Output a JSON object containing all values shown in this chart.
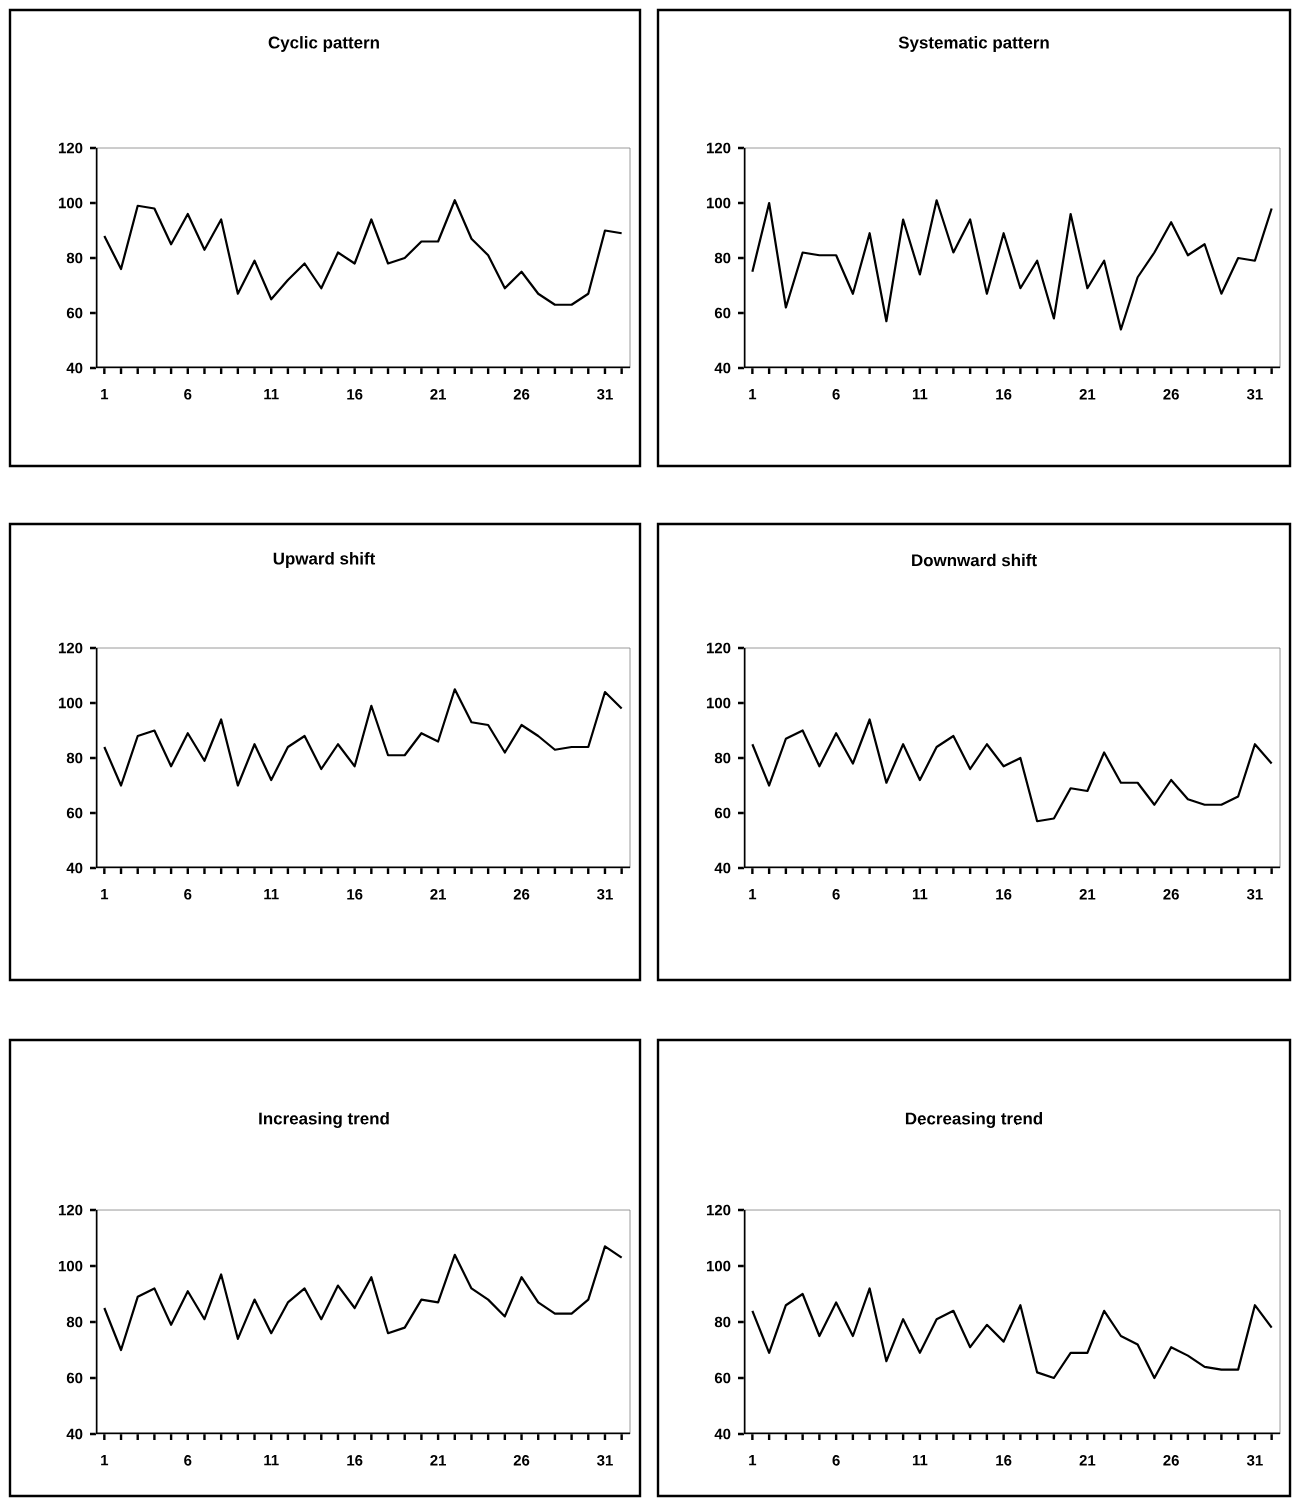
{
  "chart_data": [
    {
      "type": "line",
      "title": "Cyclic pattern",
      "x": [
        1,
        2,
        3,
        4,
        5,
        6,
        7,
        8,
        9,
        10,
        11,
        12,
        13,
        14,
        15,
        16,
        17,
        18,
        19,
        20,
        21,
        22,
        23,
        24,
        25,
        26,
        27,
        28,
        29,
        30,
        31,
        32
      ],
      "xlim": [
        0.5,
        32.5
      ],
      "xticks": [
        1,
        {
          "value": 2,
          "label": null
        },
        {
          "value": 3,
          "label": null
        },
        {
          "value": 4,
          "label": null
        },
        {
          "value": 5,
          "label": null
        },
        6,
        {
          "value": 7,
          "label": null
        },
        {
          "value": 8,
          "label": null
        },
        {
          "value": 9,
          "label": null
        },
        {
          "value": 10,
          "label": null
        },
        11,
        {
          "value": 12,
          "label": null
        },
        {
          "value": 13,
          "label": null
        },
        {
          "value": 14,
          "label": null
        },
        {
          "value": 15,
          "label": null
        },
        16,
        {
          "value": 17,
          "label": null
        },
        {
          "value": 18,
          "label": null
        },
        {
          "value": 19,
          "label": null
        },
        {
          "value": 20,
          "label": null
        },
        21,
        {
          "value": 22,
          "label": null
        },
        {
          "value": 23,
          "label": null
        },
        {
          "value": 24,
          "label": null
        },
        {
          "value": 25,
          "label": null
        },
        26,
        {
          "value": 27,
          "label": null
        },
        {
          "value": 28,
          "label": null
        },
        {
          "value": 29,
          "label": null
        },
        {
          "value": 30,
          "label": null
        },
        31,
        {
          "value": 32,
          "label": null
        }
      ],
      "ylim": [
        40,
        120
      ],
      "yticks": [
        40,
        60,
        80,
        100,
        120
      ],
      "series": [
        {
          "color": "#000000",
          "values": [
            88,
            76,
            99,
            98,
            85,
            96,
            83,
            94,
            67,
            79,
            65,
            72,
            78,
            69,
            82,
            78,
            94,
            78,
            80,
            86,
            86,
            101,
            87,
            81,
            69,
            75,
            67,
            63,
            63,
            67,
            90,
            89
          ]
        }
      ]
    },
    {
      "type": "line",
      "title": "Systematic pattern",
      "x": [
        1,
        2,
        3,
        4,
        5,
        6,
        7,
        8,
        9,
        10,
        11,
        12,
        13,
        14,
        15,
        16,
        17,
        18,
        19,
        20,
        21,
        22,
        23,
        24,
        25,
        26,
        27,
        28,
        29,
        30,
        31,
        32
      ],
      "xlim": [
        0.5,
        32.5
      ],
      "xticks": [
        1,
        {
          "value": 2,
          "label": null
        },
        {
          "value": 3,
          "label": null
        },
        {
          "value": 4,
          "label": null
        },
        {
          "value": 5,
          "label": null
        },
        6,
        {
          "value": 7,
          "label": null
        },
        {
          "value": 8,
          "label": null
        },
        {
          "value": 9,
          "label": null
        },
        {
          "value": 10,
          "label": null
        },
        11,
        {
          "value": 12,
          "label": null
        },
        {
          "value": 13,
          "label": null
        },
        {
          "value": 14,
          "label": null
        },
        {
          "value": 15,
          "label": null
        },
        16,
        {
          "value": 17,
          "label": null
        },
        {
          "value": 18,
          "label": null
        },
        {
          "value": 19,
          "label": null
        },
        {
          "value": 20,
          "label": null
        },
        21,
        {
          "value": 22,
          "label": null
        },
        {
          "value": 23,
          "label": null
        },
        {
          "value": 24,
          "label": null
        },
        {
          "value": 25,
          "label": null
        },
        26,
        {
          "value": 27,
          "label": null
        },
        {
          "value": 28,
          "label": null
        },
        {
          "value": 29,
          "label": null
        },
        {
          "value": 30,
          "label": null
        },
        31,
        {
          "value": 32,
          "label": null
        }
      ],
      "ylim": [
        40,
        120
      ],
      "yticks": [
        40,
        60,
        80,
        100,
        120
      ],
      "series": [
        {
          "color": "#000000",
          "values": [
            75,
            100,
            62,
            82,
            81,
            81,
            67,
            89,
            57,
            94,
            74,
            101,
            82,
            94,
            67,
            89,
            69,
            79,
            58,
            96,
            69,
            79,
            54,
            73,
            82,
            93,
            81,
            85,
            67,
            80,
            79,
            98
          ]
        }
      ]
    },
    {
      "type": "line",
      "title": "Upward shift",
      "x": [
        1,
        2,
        3,
        4,
        5,
        6,
        7,
        8,
        9,
        10,
        11,
        12,
        13,
        14,
        15,
        16,
        17,
        18,
        19,
        20,
        21,
        22,
        23,
        24,
        25,
        26,
        27,
        28,
        29,
        30,
        31,
        32
      ],
      "xlim": [
        0.5,
        32.5
      ],
      "xticks": [
        1,
        {
          "value": 2,
          "label": null
        },
        {
          "value": 3,
          "label": null
        },
        {
          "value": 4,
          "label": null
        },
        {
          "value": 5,
          "label": null
        },
        6,
        {
          "value": 7,
          "label": null
        },
        {
          "value": 8,
          "label": null
        },
        {
          "value": 9,
          "label": null
        },
        {
          "value": 10,
          "label": null
        },
        11,
        {
          "value": 12,
          "label": null
        },
        {
          "value": 13,
          "label": null
        },
        {
          "value": 14,
          "label": null
        },
        {
          "value": 15,
          "label": null
        },
        16,
        {
          "value": 17,
          "label": null
        },
        {
          "value": 18,
          "label": null
        },
        {
          "value": 19,
          "label": null
        },
        {
          "value": 20,
          "label": null
        },
        21,
        {
          "value": 22,
          "label": null
        },
        {
          "value": 23,
          "label": null
        },
        {
          "value": 24,
          "label": null
        },
        {
          "value": 25,
          "label": null
        },
        26,
        {
          "value": 27,
          "label": null
        },
        {
          "value": 28,
          "label": null
        },
        {
          "value": 29,
          "label": null
        },
        {
          "value": 30,
          "label": null
        },
        31,
        {
          "value": 32,
          "label": null
        }
      ],
      "ylim": [
        40,
        120
      ],
      "yticks": [
        40,
        60,
        80,
        100,
        120
      ],
      "series": [
        {
          "color": "#000000",
          "values": [
            84,
            70,
            88,
            90,
            77,
            89,
            79,
            94,
            70,
            85,
            72,
            84,
            88,
            76,
            85,
            77,
            99,
            81,
            81,
            89,
            86,
            105,
            93,
            92,
            82,
            92,
            88,
            83,
            84,
            84,
            104,
            98
          ]
        }
      ]
    },
    {
      "type": "line",
      "title": "Downward shift",
      "x": [
        1,
        2,
        3,
        4,
        5,
        6,
        7,
        8,
        9,
        10,
        11,
        12,
        13,
        14,
        15,
        16,
        17,
        18,
        19,
        20,
        21,
        22,
        23,
        24,
        25,
        26,
        27,
        28,
        29,
        30,
        31,
        32
      ],
      "xlim": [
        0.5,
        32.5
      ],
      "xticks": [
        1,
        {
          "value": 2,
          "label": null
        },
        {
          "value": 3,
          "label": null
        },
        {
          "value": 4,
          "label": null
        },
        {
          "value": 5,
          "label": null
        },
        6,
        {
          "value": 7,
          "label": null
        },
        {
          "value": 8,
          "label": null
        },
        {
          "value": 9,
          "label": null
        },
        {
          "value": 10,
          "label": null
        },
        11,
        {
          "value": 12,
          "label": null
        },
        {
          "value": 13,
          "label": null
        },
        {
          "value": 14,
          "label": null
        },
        {
          "value": 15,
          "label": null
        },
        16,
        {
          "value": 17,
          "label": null
        },
        {
          "value": 18,
          "label": null
        },
        {
          "value": 19,
          "label": null
        },
        {
          "value": 20,
          "label": null
        },
        21,
        {
          "value": 22,
          "label": null
        },
        {
          "value": 23,
          "label": null
        },
        {
          "value": 24,
          "label": null
        },
        {
          "value": 25,
          "label": null
        },
        26,
        {
          "value": 27,
          "label": null
        },
        {
          "value": 28,
          "label": null
        },
        {
          "value": 29,
          "label": null
        },
        {
          "value": 30,
          "label": null
        },
        31,
        {
          "value": 32,
          "label": null
        }
      ],
      "ylim": [
        40,
        120
      ],
      "yticks": [
        40,
        60,
        80,
        100,
        120
      ],
      "series": [
        {
          "color": "#000000",
          "values": [
            85,
            70,
            87,
            90,
            77,
            89,
            78,
            94,
            71,
            85,
            72,
            84,
            88,
            76,
            85,
            77,
            80,
            57,
            58,
            69,
            68,
            82,
            71,
            71,
            63,
            72,
            65,
            63,
            63,
            66,
            85,
            78
          ]
        }
      ]
    },
    {
      "type": "line",
      "title": "Increasing trend",
      "x": [
        1,
        2,
        3,
        4,
        5,
        6,
        7,
        8,
        9,
        10,
        11,
        12,
        13,
        14,
        15,
        16,
        17,
        18,
        19,
        20,
        21,
        22,
        23,
        24,
        25,
        26,
        27,
        28,
        29,
        30,
        31,
        32
      ],
      "xlim": [
        0.5,
        32.5
      ],
      "xticks": [
        1,
        {
          "value": 2,
          "label": null
        },
        {
          "value": 3,
          "label": null
        },
        {
          "value": 4,
          "label": null
        },
        {
          "value": 5,
          "label": null
        },
        6,
        {
          "value": 7,
          "label": null
        },
        {
          "value": 8,
          "label": null
        },
        {
          "value": 9,
          "label": null
        },
        {
          "value": 10,
          "label": null
        },
        11,
        {
          "value": 12,
          "label": null
        },
        {
          "value": 13,
          "label": null
        },
        {
          "value": 14,
          "label": null
        },
        {
          "value": 15,
          "label": null
        },
        16,
        {
          "value": 17,
          "label": null
        },
        {
          "value": 18,
          "label": null
        },
        {
          "value": 19,
          "label": null
        },
        {
          "value": 20,
          "label": null
        },
        21,
        {
          "value": 22,
          "label": null
        },
        {
          "value": 23,
          "label": null
        },
        {
          "value": 24,
          "label": null
        },
        {
          "value": 25,
          "label": null
        },
        26,
        {
          "value": 27,
          "label": null
        },
        {
          "value": 28,
          "label": null
        },
        {
          "value": 29,
          "label": null
        },
        {
          "value": 30,
          "label": null
        },
        31,
        {
          "value": 32,
          "label": null
        }
      ],
      "ylim": [
        40,
        120
      ],
      "yticks": [
        40,
        60,
        80,
        100,
        120
      ],
      "series": [
        {
          "color": "#000000",
          "values": [
            85,
            70,
            89,
            92,
            79,
            91,
            81,
            97,
            74,
            88,
            76,
            87,
            92,
            81,
            93,
            85,
            96,
            76,
            78,
            88,
            87,
            104,
            92,
            88,
            82,
            96,
            87,
            83,
            83,
            88,
            107,
            103
          ]
        }
      ]
    },
    {
      "type": "line",
      "title": "Decreasing trend",
      "x": [
        1,
        2,
        3,
        4,
        5,
        6,
        7,
        8,
        9,
        10,
        11,
        12,
        13,
        14,
        15,
        16,
        17,
        18,
        19,
        20,
        21,
        22,
        23,
        24,
        25,
        26,
        27,
        28,
        29,
        30,
        31,
        32
      ],
      "xlim": [
        0.5,
        32.5
      ],
      "xticks": [
        1,
        {
          "value": 2,
          "label": null
        },
        {
          "value": 3,
          "label": null
        },
        {
          "value": 4,
          "label": null
        },
        {
          "value": 5,
          "label": null
        },
        6,
        {
          "value": 7,
          "label": null
        },
        {
          "value": 8,
          "label": null
        },
        {
          "value": 9,
          "label": null
        },
        {
          "value": 10,
          "label": null
        },
        11,
        {
          "value": 12,
          "label": null
        },
        {
          "value": 13,
          "label": null
        },
        {
          "value": 14,
          "label": null
        },
        {
          "value": 15,
          "label": null
        },
        16,
        {
          "value": 17,
          "label": null
        },
        {
          "value": 18,
          "label": null
        },
        {
          "value": 19,
          "label": null
        },
        {
          "value": 20,
          "label": null
        },
        21,
        {
          "value": 22,
          "label": null
        },
        {
          "value": 23,
          "label": null
        },
        {
          "value": 24,
          "label": null
        },
        {
          "value": 25,
          "label": null
        },
        26,
        {
          "value": 27,
          "label": null
        },
        {
          "value": 28,
          "label": null
        },
        {
          "value": 29,
          "label": null
        },
        {
          "value": 30,
          "label": null
        },
        31,
        {
          "value": 32,
          "label": null
        }
      ],
      "ylim": [
        40,
        120
      ],
      "yticks": [
        40,
        60,
        80,
        100,
        120
      ],
      "series": [
        {
          "color": "#000000",
          "values": [
            84,
            69,
            86,
            90,
            75,
            87,
            75,
            92,
            66,
            81,
            69,
            81,
            84,
            71,
            79,
            73,
            86,
            62,
            60,
            69,
            69,
            84,
            75,
            72,
            60,
            71,
            68,
            64,
            63,
            63,
            86,
            78
          ]
        }
      ]
    }
  ]
}
